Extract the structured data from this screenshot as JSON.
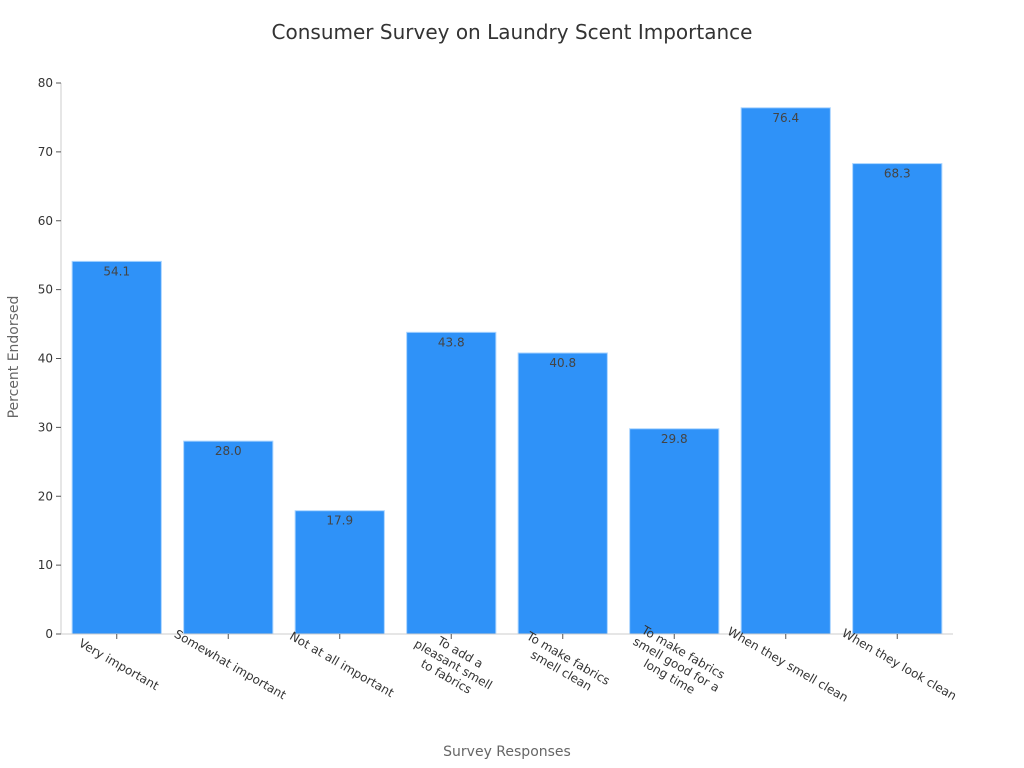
{
  "chart_data": {
    "type": "bar",
    "title": "Consumer Survey on Laundry Scent Importance",
    "xlabel": "Survey Responses",
    "ylabel": "Percent Endorsed",
    "categories": [
      "Very important",
      "Somewhat important",
      "Not at all important",
      "To add a pleasant smell to fabrics",
      "To make fabrics smell clean",
      "To make fabrics smell good for a long time",
      "When they smell clean",
      "When they look clean"
    ],
    "category_lines": [
      [
        "Very important"
      ],
      [
        "Somewhat important"
      ],
      [
        "Not at all important"
      ],
      [
        "To add a",
        "pleasant smell",
        "to fabrics"
      ],
      [
        "To make fabrics",
        "smell clean"
      ],
      [
        "To make fabrics",
        "smell good for a",
        "long time"
      ],
      [
        "When they smell clean"
      ],
      [
        "When they look clean"
      ]
    ],
    "values": [
      54.1,
      28.0,
      17.9,
      43.8,
      40.8,
      29.8,
      76.4,
      68.3
    ],
    "value_labels": [
      "54.1",
      "28.0",
      "17.9",
      "43.8",
      "40.8",
      "29.8",
      "76.4",
      "68.3"
    ],
    "ylim": [
      0,
      80
    ],
    "yticks": [
      0,
      10,
      20,
      30,
      40,
      50,
      60,
      70,
      80
    ],
    "grid": false,
    "bar_color": "#2f92f8",
    "bar_edge_color": "#a9d4ff"
  }
}
